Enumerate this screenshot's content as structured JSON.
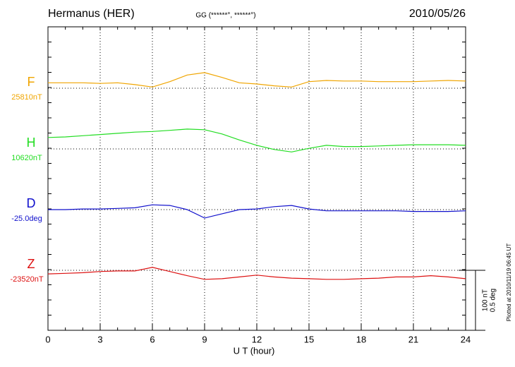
{
  "chart_data": {
    "type": "line",
    "title": "Hermanus (HER)",
    "subtitle": "GG (******°, ******°)",
    "date": "2010/05/26",
    "x_label": "U T (hour)",
    "footnote": "Plotted at 2010/11/19 06:45 UT",
    "xlim": [
      0,
      24
    ],
    "xticks": [
      0,
      3,
      6,
      9,
      12,
      15,
      18,
      21,
      24
    ],
    "grid": true,
    "scale": {
      "nT": {
        "value": 100,
        "label": "100 nT"
      },
      "deg": {
        "value": 0.5,
        "label": "0.5 deg"
      }
    },
    "x": [
      0,
      1,
      2,
      3,
      4,
      5,
      6,
      7,
      8,
      9,
      10,
      11,
      12,
      13,
      14,
      15,
      16,
      17,
      18,
      19,
      20,
      21,
      22,
      23,
      24
    ],
    "series": [
      {
        "name": "F",
        "offset_label": "25810nT",
        "axis": "nT",
        "color": "#f0a500",
        "values": [
          9,
          9,
          9,
          8,
          9,
          6,
          2,
          11,
          22,
          26,
          18,
          9,
          7,
          4,
          2,
          11,
          13,
          12,
          12,
          11,
          11,
          11,
          12,
          13,
          12
        ]
      },
      {
        "name": "H",
        "offset_label": "10620nT",
        "axis": "nT",
        "color": "#22dd22",
        "values": [
          19,
          20,
          22,
          24,
          26,
          28,
          29,
          31,
          33,
          32,
          25,
          15,
          6,
          -1,
          -5,
          1,
          6,
          4,
          4,
          5,
          6,
          7,
          7,
          7,
          6
        ]
      },
      {
        "name": "D",
        "offset_label": "-25.0deg",
        "axis": "deg",
        "color": "#1010cc",
        "values": [
          0,
          0,
          0.005,
          0.005,
          0.01,
          0.015,
          0.04,
          0.035,
          0,
          -0.07,
          -0.035,
          0,
          0.005,
          0.025,
          0.035,
          0.005,
          -0.01,
          -0.01,
          -0.01,
          -0.01,
          -0.01,
          -0.015,
          -0.015,
          -0.015,
          -0.01
        ]
      },
      {
        "name": "Z",
        "offset_label": "-23520nT",
        "axis": "nT",
        "color": "#dd1111",
        "values": [
          -6,
          -5,
          -4,
          -2,
          -1,
          -1,
          5,
          -2,
          -9,
          -15,
          -14,
          -11,
          -8,
          -11,
          -13,
          -14,
          -15,
          -15,
          -14,
          -13,
          -11,
          -11,
          -9,
          -11,
          -14
        ]
      }
    ]
  }
}
